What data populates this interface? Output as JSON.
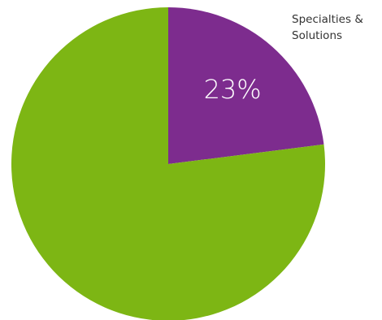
{
  "chart_data": {
    "type": "pie",
    "slices": [
      {
        "label": "Specialties & Solutions",
        "value": 23,
        "display": "23%",
        "color": "#7D2C8E"
      },
      {
        "label": "",
        "value": 77,
        "display": "",
        "color": "#7DB614"
      }
    ],
    "start_angle_deg": 0,
    "direction": "clockwise",
    "legend": "top-right"
  }
}
